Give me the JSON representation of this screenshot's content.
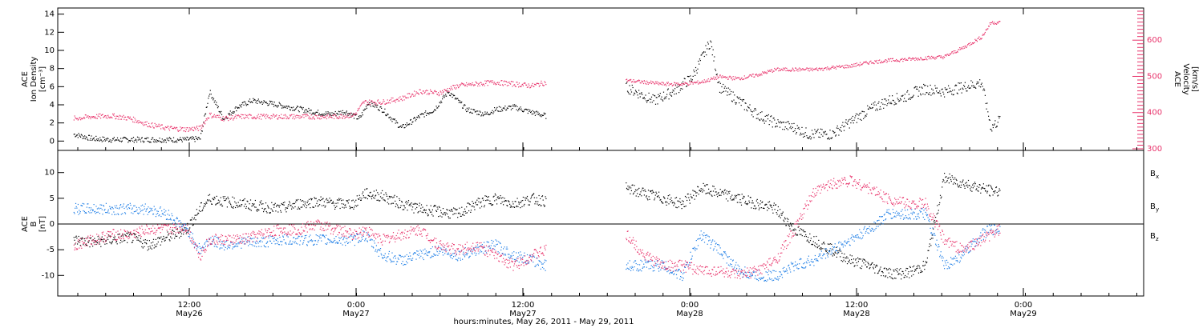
{
  "colors": {
    "density": "#000000",
    "velocity": "#e8336b",
    "bx": "#000000",
    "by": "#1e7ee6",
    "bz": "#e8336b"
  },
  "chart_data": [
    {
      "type": "scatter",
      "panel": "top",
      "ylabel_left": [
        "ACE",
        "Ion Density",
        "[cm⁻³]"
      ],
      "ylabel_right": [
        "ACE",
        "Velocity",
        "[km/s]"
      ],
      "ylim_left": [
        -0.5,
        14.5
      ],
      "ylim_right": [
        300,
        680
      ],
      "left_ticks": [
        "0",
        "2",
        "4",
        "6",
        "8",
        "10",
        "12",
        "14"
      ],
      "right_ticks": [
        "300",
        "400",
        "500",
        "600"
      ],
      "series": [
        {
          "axis": "left",
          "x": [
            0.1,
            0.3,
            0.5,
            0.7,
            0.9,
            1.1,
            1.3,
            1.45,
            1.55,
            1.7,
            1.85,
            2.0,
            2.2,
            2.4,
            2.55,
            2.7,
            2.85,
            3.0,
            3.15,
            3.25,
            3.4,
            3.6,
            3.8,
            3.95,
            4.1,
            4.3,
            4.5,
            4.6,
            4.8,
            5.0,
            5.15
          ],
          "y": [
            0.8,
            0.3,
            0.2,
            0.2,
            0.2,
            0.2,
            0.2,
            0.3,
            5.5,
            2.5,
            3.8,
            4.5,
            4.2,
            3.8,
            3.5,
            3.2,
            3.0,
            3.3,
            2.5,
            4.3,
            3.5,
            1.5,
            2.8,
            3.5,
            5.5,
            3.5,
            3.0,
            3.5,
            3.8,
            3.2,
            2.8
          ]
        },
        {
          "axis": "left",
          "x": [
            6.0,
            6.1,
            6.3,
            6.5,
            6.7,
            6.9,
            7.0,
            7.2,
            7.4,
            7.6,
            7.8,
            7.95,
            8.1,
            8.2,
            8.3,
            8.45,
            8.6,
            8.8,
            9.0,
            9.1,
            9.2,
            9.4,
            9.6,
            9.8,
            9.9,
            10.0
          ],
          "y": [
            6.0,
            5.5,
            4.5,
            5.5,
            7.0,
            11.0,
            6.0,
            4.5,
            3.0,
            2.0,
            1.5,
            0.8,
            0.8,
            0.8,
            1.5,
            2.5,
            3.5,
            4.5,
            5.0,
            5.5,
            5.8,
            5.5,
            6.0,
            6.5,
            1.5,
            2.5
          ]
        },
        {
          "axis": "right",
          "x": [
            0.1,
            0.3,
            0.5,
            0.7,
            0.9,
            1.1,
            1.3,
            1.45,
            1.55,
            1.7,
            1.9,
            2.1,
            2.3,
            2.5,
            2.7,
            2.9,
            3.1,
            3.2,
            3.4,
            3.6,
            3.8,
            4.0,
            4.2,
            4.4,
            4.6,
            4.8,
            5.0,
            5.15
          ],
          "y": [
            385,
            390,
            392,
            385,
            368,
            358,
            355,
            358,
            395,
            385,
            390,
            390,
            390,
            390,
            390,
            390,
            395,
            430,
            430,
            440,
            460,
            455,
            475,
            480,
            485,
            480,
            475,
            485
          ],
          "alt": "second-group"
        },
        {
          "axis": "right",
          "x": [
            6.0,
            6.2,
            6.4,
            6.6,
            6.8,
            7.0,
            7.2,
            7.4,
            7.6,
            7.8,
            8.0,
            8.2,
            8.4,
            8.6,
            8.8,
            9.0,
            9.2,
            9.4,
            9.6,
            9.8,
            9.9,
            10.0
          ],
          "y": [
            490,
            485,
            480,
            480,
            485,
            500,
            495,
            505,
            520,
            520,
            520,
            525,
            530,
            540,
            545,
            548,
            552,
            555,
            580,
            610,
            650,
            650
          ]
        }
      ]
    },
    {
      "type": "scatter",
      "panel": "bottom",
      "ylabel_left": [
        "ACE",
        "B",
        "[nT]"
      ],
      "ylim": [
        -14,
        14
      ],
      "left_ticks": [
        "-10",
        "-5",
        "0",
        "5",
        "10"
      ],
      "series": [
        {
          "name": "Bx",
          "x": [
            0.1,
            0.3,
            0.5,
            0.7,
            0.9,
            1.1,
            1.3,
            1.45,
            1.55,
            1.7,
            1.9,
            2.1,
            2.3,
            2.5,
            2.7,
            2.9,
            3.1,
            3.2,
            3.4,
            3.6,
            3.8,
            4.0,
            4.2,
            4.4,
            4.6,
            4.8,
            5.0,
            5.15
          ],
          "y": [
            -3,
            -3.5,
            -3,
            -2.5,
            -4,
            -2.5,
            -1,
            3,
            5,
            4.5,
            4,
            3.5,
            3,
            4,
            4.5,
            4,
            4,
            6,
            5.5,
            4,
            3,
            2.5,
            2,
            4,
            5,
            4,
            5,
            4.5
          ]
        },
        {
          "name": "Bx",
          "x": [
            6.0,
            6.2,
            6.4,
            6.6,
            6.8,
            7.0,
            7.2,
            7.4,
            7.6,
            7.8,
            8.0,
            8.2,
            8.4,
            8.6,
            8.8,
            9.0,
            9.2,
            9.4,
            9.6,
            9.8,
            9.9,
            10.0
          ],
          "y": [
            7,
            6,
            5,
            4,
            7,
            6,
            5,
            4,
            3,
            -1,
            -3,
            -5,
            -7,
            -8,
            -9.5,
            -9.5,
            -8,
            9,
            8,
            7,
            6.5,
            6.5
          ]
        },
        {
          "name": "By",
          "x": [
            0.1,
            0.3,
            0.5,
            0.7,
            0.9,
            1.1,
            1.3,
            1.45,
            1.55,
            1.7,
            1.9,
            2.1,
            2.3,
            2.5,
            2.7,
            2.9,
            3.1,
            3.2,
            3.4,
            3.6,
            3.8,
            4.0,
            4.2,
            4.4,
            4.6,
            4.8,
            5.0,
            5.15
          ],
          "y": [
            3,
            3,
            3,
            3,
            3,
            2,
            -1,
            -5,
            -3,
            -4,
            -3.5,
            -3.5,
            -3,
            -3,
            -3,
            -3,
            -3,
            -2,
            -6,
            -7,
            -6,
            -5,
            -6,
            -5,
            -4,
            -6,
            -7,
            -8
          ]
        },
        {
          "name": "By",
          "x": [
            6.0,
            6.2,
            6.4,
            6.6,
            6.8,
            7.0,
            7.2,
            7.4,
            7.6,
            7.8,
            8.0,
            8.2,
            8.4,
            8.6,
            8.8,
            9.0,
            9.2,
            9.4,
            9.6,
            9.8,
            9.9,
            10.0
          ],
          "y": [
            -8,
            -8,
            -8,
            -10,
            -2,
            -5,
            -9,
            -10,
            -10,
            -8,
            -7,
            -5,
            -3,
            -1,
            2,
            2,
            2,
            -8,
            -6,
            -2,
            -1,
            -1
          ]
        },
        {
          "name": "Bz",
          "x": [
            0.1,
            0.3,
            0.5,
            0.7,
            0.9,
            1.1,
            1.3,
            1.45,
            1.55,
            1.7,
            1.9,
            2.1,
            2.3,
            2.5,
            2.7,
            2.9,
            3.1,
            3.2,
            3.4,
            3.6,
            3.8,
            4.0,
            4.2,
            4.4,
            4.6,
            4.8,
            5.0,
            5.15
          ],
          "y": [
            -4,
            -3,
            -2,
            -2,
            -1,
            -1,
            -0.5,
            -6,
            -3,
            -3,
            -3,
            -2,
            -1,
            -1,
            0,
            -1,
            -2,
            -1,
            -3,
            -2,
            -1,
            -4,
            -5,
            -4,
            -6,
            -8,
            -6,
            -5
          ]
        },
        {
          "name": "Bz",
          "x": [
            6.0,
            6.2,
            6.4,
            6.6,
            6.8,
            7.0,
            7.2,
            7.4,
            7.6,
            7.8,
            8.0,
            8.2,
            8.4,
            8.6,
            8.8,
            9.0,
            9.2,
            9.4,
            9.6,
            9.8,
            9.9,
            10.0
          ],
          "y": [
            -2,
            -6,
            -8,
            -8,
            -9,
            -9,
            -10,
            -9,
            -7,
            -1,
            6,
            8,
            8.5,
            7,
            5,
            4,
            4,
            -3,
            -5,
            -3,
            -2,
            -1
          ]
        }
      ]
    }
  ],
  "legend": [
    "B",
    "B",
    "B"
  ],
  "legend_sub": [
    "x",
    "y",
    "z"
  ],
  "x_axis": {
    "ticks": [
      {
        "time": "12:00",
        "date": "May26"
      },
      {
        "time": "0:00",
        "date": "May27"
      },
      {
        "time": "12:00",
        "date": "May27"
      },
      {
        "time": "0:00",
        "date": "May28"
      },
      {
        "time": "12:00",
        "date": "May28"
      },
      {
        "time": "0:00",
        "date": "May29"
      }
    ],
    "label": "hours:minutes, May 26, 2011 - May 29, 2011"
  }
}
